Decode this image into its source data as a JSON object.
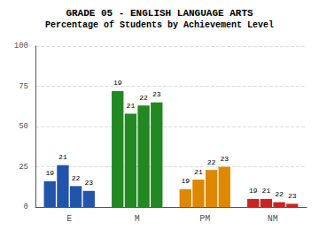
{
  "chart_data": {
    "type": "bar",
    "title": "GRADE 05 - ENGLISH LANGUAGE ARTS",
    "subtitle": "Percentage of Students by Achievement Level",
    "categories": [
      "E",
      "M",
      "PM",
      "NM"
    ],
    "series": [
      {
        "name": "19",
        "values": [
          16,
          72,
          11,
          5
        ],
        "colors": [
          "#2255aa",
          "#228822",
          "#dd8800",
          "#cc2222"
        ]
      },
      {
        "name": "21",
        "values": [
          26,
          58,
          17,
          5
        ],
        "colors": [
          "#2255aa",
          "#228822",
          "#dd8800",
          "#cc2222"
        ]
      },
      {
        "name": "22",
        "values": [
          13,
          63,
          23,
          3
        ],
        "colors": [
          "#2255aa",
          "#228822",
          "#dd8800",
          "#cc2222"
        ]
      },
      {
        "name": "23",
        "values": [
          10,
          65,
          25,
          2
        ],
        "colors": [
          "#2255aa",
          "#228822",
          "#dd8800",
          "#cc2222"
        ]
      }
    ],
    "ylim": [
      0,
      100
    ],
    "yticks": [
      0,
      25,
      50,
      75,
      100
    ],
    "grid": true
  }
}
